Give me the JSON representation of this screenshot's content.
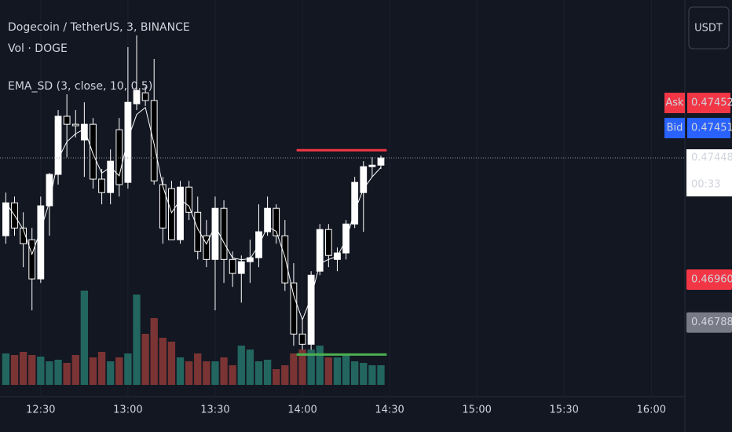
{
  "chart_data": {
    "type": "candlestick",
    "title": "Dogecoin / TetherUS, 3, BINANCE",
    "legend_lines": [
      "Vol · DOGE",
      "EMA_SD (3, close, 10, 0.5)"
    ],
    "currency": "USDT",
    "x": [
      "12:18",
      "12:21",
      "12:24",
      "12:27",
      "12:30",
      "12:33",
      "12:36",
      "12:39",
      "12:42",
      "12:45",
      "12:48",
      "12:51",
      "12:54",
      "12:57",
      "13:00",
      "13:03",
      "13:06",
      "13:09",
      "13:12",
      "13:15",
      "13:18",
      "13:21",
      "13:24",
      "13:27",
      "13:30",
      "13:33",
      "13:36",
      "13:39",
      "13:42",
      "13:45",
      "13:48",
      "13:51",
      "13:54",
      "13:57",
      "14:00",
      "14:03",
      "14:06",
      "14:09",
      "14:12",
      "14:15",
      "14:18",
      "14:21",
      "14:24",
      "14:27"
    ],
    "open": [
      0.47136,
      0.47268,
      0.47167,
      0.4712,
      0.46963,
      0.47256,
      0.47382,
      0.47615,
      0.47583,
      0.4752,
      0.47583,
      0.47363,
      0.47309,
      0.47561,
      0.4735,
      0.47665,
      0.47709,
      0.47678,
      0.47341,
      0.47325,
      0.4712,
      0.47331,
      0.4723,
      0.47136,
      0.47041,
      0.47246,
      0.47041,
      0.46985,
      0.47032,
      0.47048,
      0.47152,
      0.47246,
      0.47136,
      0.46947,
      0.46742,
      0.46701,
      0.46994,
      0.47161,
      0.47041,
      0.47067,
      0.47183,
      0.47309,
      0.47413,
      0.47419
    ],
    "high": [
      0.47309,
      0.47293,
      0.4723,
      0.47167,
      0.47293,
      0.47388,
      0.4764,
      0.47703,
      0.4764,
      0.47671,
      0.47608,
      0.47404,
      0.47482,
      0.47608,
      0.47892,
      0.47939,
      0.47734,
      0.47845,
      0.47372,
      0.47356,
      0.47356,
      0.47356,
      0.47293,
      0.47199,
      0.47293,
      0.47278,
      0.47073,
      0.47057,
      0.4712,
      0.47262,
      0.47293,
      0.47262,
      0.47199,
      0.47026,
      0.46805,
      0.46994,
      0.47183,
      0.47183,
      0.47089,
      0.47199,
      0.47372,
      0.47435,
      0.47451,
      0.47457
    ],
    "low": [
      0.47104,
      0.47136,
      0.4701,
      0.46837,
      0.46947,
      0.47136,
      0.47341,
      0.47451,
      0.4753,
      0.47372,
      0.47325,
      0.47262,
      0.47262,
      0.47293,
      0.47325,
      0.4764,
      0.47656,
      0.47341,
      0.47104,
      0.4712,
      0.47104,
      0.47199,
      0.47041,
      0.4701,
      0.46837,
      0.46947,
      0.46931,
      0.46868,
      0.46947,
      0.4701,
      0.47136,
      0.47104,
      0.46915,
      0.46695,
      0.46679,
      0.46679,
      0.46978,
      0.4701,
      0.46994,
      0.47041,
      0.47167,
      0.47152,
      0.47372,
      0.47404
    ],
    "close": [
      0.47268,
      0.47167,
      0.47104,
      0.46963,
      0.47256,
      0.47382,
      0.47615,
      0.47583,
      0.47577,
      0.47583,
      0.47363,
      0.47309,
      0.47435,
      0.47341,
      0.47671,
      0.47719,
      0.47678,
      0.47356,
      0.47167,
      0.4712,
      0.47331,
      0.4723,
      0.47073,
      0.47041,
      0.47246,
      0.47041,
      0.46985,
      0.47032,
      0.47048,
      0.47152,
      0.47246,
      0.47136,
      0.46947,
      0.46742,
      0.46701,
      0.46978,
      0.47161,
      0.47057,
      0.47067,
      0.47183,
      0.4735,
      0.47413,
      0.47419,
      0.47448
    ],
    "ema": [
      0.47268,
      0.47218,
      0.47161,
      0.47062,
      0.47159,
      0.47271,
      0.47443,
      0.47513,
      0.47545,
      0.47564,
      0.47464,
      0.47387,
      0.47411,
      0.47376,
      0.47524,
      0.47622,
      0.4765,
      0.47503,
      0.47335,
      0.47228,
      0.4728,
      0.47255,
      0.47164,
      0.47103,
      0.47175,
      0.47108,
      0.47047,
      0.4704,
      0.47044,
      0.47098,
      0.47172,
      0.47154,
      0.47051,
      0.46897,
      0.46799,
      0.46889,
      0.47025,
      0.47041,
      0.47054,
      0.47119,
      0.47235,
      0.47324,
      0.47372,
      0.4741
    ],
    "volume": [
      40,
      38,
      42,
      38,
      36,
      30,
      32,
      28,
      38,
      120,
      35,
      42,
      30,
      35,
      40,
      115,
      65,
      85,
      60,
      55,
      35,
      30,
      40,
      30,
      30,
      35,
      25,
      50,
      45,
      30,
      32,
      20,
      25,
      40,
      45,
      45,
      50,
      35,
      35,
      40,
      30,
      28,
      25,
      25
    ],
    "volume_ylim": [
      0,
      160
    ],
    "xlim": [
      "12:16",
      "16:11"
    ],
    "xticks": [
      "12:30",
      "13:00",
      "13:30",
      "14:00",
      "14:30",
      "15:00",
      "15:30",
      "16:00"
    ],
    "ylim": [
      0.46491,
      0.48081
    ],
    "up_color": "#ffffff",
    "down_color": "#000000",
    "volume_up_color": "#22665f",
    "volume_down_color": "#7a3434",
    "ema_color": "#ffffff",
    "upper_line": {
      "value": 0.47479,
      "from": "13:58",
      "to": "14:29",
      "color": "#f23645"
    },
    "lower_line": {
      "value": 0.4666,
      "from": "13:58",
      "to": "14:29",
      "color": "#4caf50"
    },
    "ask": {
      "label": "Ask",
      "value": 0.47452,
      "color": "#f23645"
    },
    "bid": {
      "label": "Bid",
      "value": 0.47451,
      "color": "#2962ff"
    },
    "last": {
      "value": 0.47448,
      "countdown": "00:33"
    },
    "levels": [
      {
        "value": 0.4696,
        "label": "0.46960",
        "color": "#f23645"
      },
      {
        "value": 0.46788,
        "label": "0.46788",
        "color": "#787b86"
      }
    ]
  }
}
